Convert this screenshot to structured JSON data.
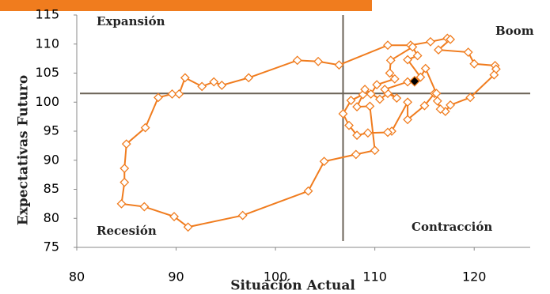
{
  "chart_data": {
    "type": "scatter-line",
    "x_label": "Situación Actual",
    "y_label": "Expectativas Futuro",
    "quadrant_labels": [
      "Expansión",
      "Boom",
      "Recesión",
      "Contracción"
    ],
    "xlim": [
      80,
      125
    ],
    "ylim": [
      75,
      115
    ],
    "xticks": [
      80,
      90,
      100,
      110,
      120
    ],
    "yticks": [
      75,
      80,
      85,
      90,
      95,
      100,
      105,
      110,
      115
    ],
    "reference": {
      "x": 106.8,
      "y": 101.5
    },
    "reference_color": "#6b6257",
    "color": "#f07c1e",
    "last_point_color": "#000000",
    "x": [
      116,
      115,
      113.3,
      113.3,
      111.7,
      111.3,
      109.3,
      108.2,
      107.4,
      106.8,
      107.6,
      108.8,
      108.2,
      109.5,
      110,
      108.1,
      104.9,
      103.3,
      96.7,
      91.2,
      89.8,
      86.8,
      84.5,
      84.8,
      84.8,
      85,
      86.9,
      88.2,
      89.6,
      90.3,
      90.9,
      92.6,
      93.8,
      94.6,
      97.3,
      102.2,
      104.3,
      106.4,
      111.3,
      113.6,
      115.6,
      117.3,
      117.6,
      116.4,
      119.4,
      120,
      122.1,
      122.2,
      122,
      119.6,
      117.6,
      117.1,
      116.6,
      116.3,
      116.2,
      115.1,
      114.6,
      113.3,
      114.3,
      113.8,
      111.6,
      111.5,
      112,
      110.2,
      109.6,
      109,
      110.5,
      111.3,
      112.2,
      111,
      113.3,
      114
    ],
    "y": [
      101.5,
      99.4,
      97,
      100,
      95,
      94.8,
      94.7,
      94.3,
      96,
      98,
      100.3,
      101.3,
      99.2,
      99.3,
      91.7,
      91,
      89.8,
      84.7,
      80.5,
      78.5,
      80.3,
      82,
      82.5,
      86.2,
      88.6,
      92.8,
      95.6,
      100.8,
      101.4,
      101.4,
      104.2,
      102.7,
      103.5,
      102.9,
      104.2,
      107.2,
      107,
      106.4,
      109.8,
      109.8,
      110.4,
      111,
      110.8,
      109,
      108.6,
      106.6,
      106.3,
      105.7,
      104.7,
      100.8,
      99.5,
      98.4,
      98.8,
      100.2,
      101.5,
      105.8,
      104.3,
      107.3,
      108,
      109.5,
      107.2,
      105,
      104,
      103,
      101.4,
      102.2,
      100.5,
      101.5,
      100.7,
      102.2,
      103.5,
      103.6
    ]
  }
}
